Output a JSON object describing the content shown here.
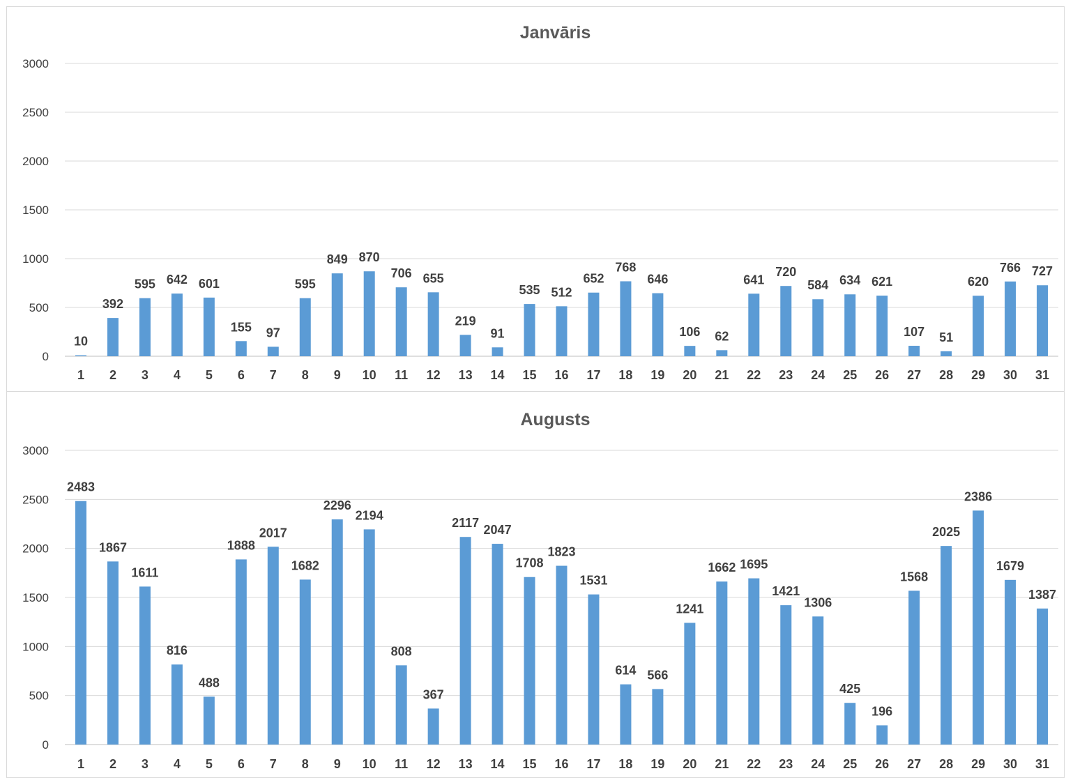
{
  "chart_data": [
    {
      "type": "bar",
      "title": "Janvāris",
      "xlabel": "",
      "ylabel": "",
      "ylim": [
        0,
        3000
      ],
      "yticks": [
        0,
        500,
        1000,
        1500,
        2000,
        2500,
        3000
      ],
      "grid": true,
      "color": "#5b9bd5",
      "categories": [
        "1",
        "2",
        "3",
        "4",
        "5",
        "6",
        "7",
        "8",
        "9",
        "10",
        "11",
        "12",
        "13",
        "14",
        "15",
        "16",
        "17",
        "18",
        "19",
        "20",
        "21",
        "22",
        "23",
        "24",
        "25",
        "26",
        "27",
        "28",
        "29",
        "30",
        "31"
      ],
      "values": [
        10,
        392,
        595,
        642,
        601,
        155,
        97,
        595,
        849,
        870,
        706,
        655,
        219,
        91,
        535,
        512,
        652,
        768,
        646,
        106,
        62,
        641,
        720,
        584,
        634,
        621,
        107,
        51,
        620,
        766,
        727
      ]
    },
    {
      "type": "bar",
      "title": "Augusts",
      "xlabel": "",
      "ylabel": "",
      "ylim": [
        0,
        3000
      ],
      "yticks": [
        0,
        500,
        1000,
        1500,
        2000,
        2500,
        3000
      ],
      "grid": true,
      "color": "#5b9bd5",
      "categories": [
        "1",
        "2",
        "3",
        "4",
        "5",
        "6",
        "7",
        "8",
        "9",
        "10",
        "11",
        "12",
        "13",
        "14",
        "15",
        "16",
        "17",
        "18",
        "19",
        "20",
        "21",
        "22",
        "23",
        "24",
        "25",
        "26",
        "27",
        "28",
        "29",
        "30",
        "31"
      ],
      "values": [
        2483,
        1867,
        1611,
        816,
        488,
        1888,
        2017,
        1682,
        2296,
        2194,
        808,
        367,
        2117,
        2047,
        1708,
        1823,
        1531,
        614,
        566,
        1241,
        1662,
        1695,
        1421,
        1306,
        425,
        196,
        1568,
        2025,
        2386,
        1679,
        1387
      ]
    }
  ]
}
